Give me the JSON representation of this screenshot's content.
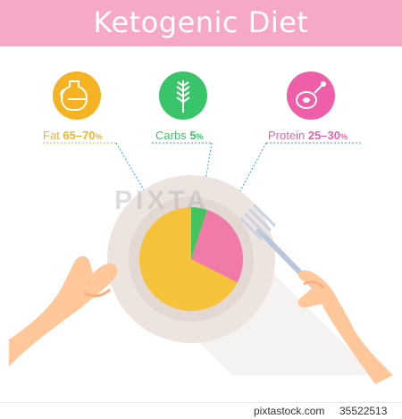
{
  "header": {
    "title": "Ketogenic Diet"
  },
  "macros": [
    {
      "name": "Fat",
      "range": "65–70",
      "unit": "%",
      "color": "#f5b223",
      "icon": "oil-jug-icon"
    },
    {
      "name": "Carbs",
      "range": "5",
      "unit": "%",
      "color": "#3ac46a",
      "icon": "wheat-icon"
    },
    {
      "name": "Protein",
      "range": "25–30",
      "unit": "%",
      "color": "#ef5fa7",
      "icon": "ham-icon"
    }
  ],
  "pie": {
    "slices": [
      {
        "name": "Fat",
        "value": 67.5,
        "color": "#f6c23a"
      },
      {
        "name": "Carbs",
        "value": 5,
        "color": "#44c35f"
      },
      {
        "name": "Protein",
        "value": 27.5,
        "color": "#f07aa8"
      }
    ]
  },
  "watermark": "PIXTA",
  "footer": {
    "site": "pixtastock.com",
    "image_number": "35522513"
  }
}
